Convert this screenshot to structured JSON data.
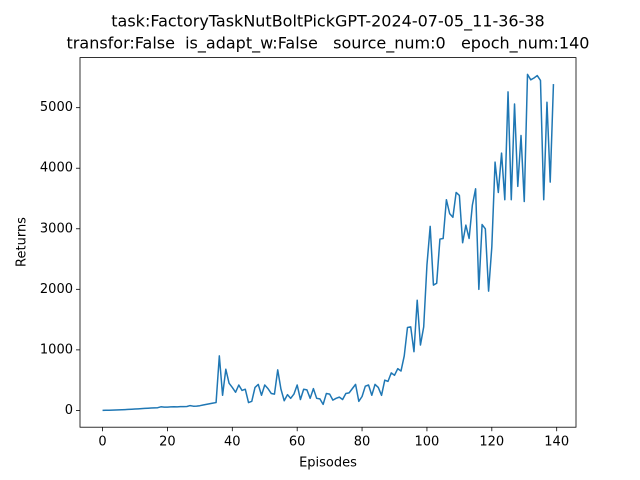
{
  "chart_data": {
    "type": "line",
    "title": [
      "task:FactoryTaskNutBoltPickGPT-2024-07-05_11-36-38",
      "transfor:False  is_adapt_w:False   source_num:0   epoch_num:140"
    ],
    "xlabel": "Episodes",
    "ylabel": "Returns",
    "color": "#1f77b4",
    "x": [
      0,
      1,
      2,
      3,
      4,
      5,
      6,
      7,
      8,
      9,
      10,
      11,
      12,
      13,
      14,
      15,
      16,
      17,
      18,
      19,
      20,
      21,
      22,
      23,
      24,
      25,
      26,
      27,
      28,
      29,
      30,
      31,
      32,
      33,
      34,
      35,
      36,
      37,
      38,
      39,
      40,
      41,
      42,
      43,
      44,
      45,
      46,
      47,
      48,
      49,
      50,
      51,
      52,
      53,
      54,
      55,
      56,
      57,
      58,
      59,
      60,
      61,
      62,
      63,
      64,
      65,
      66,
      67,
      68,
      69,
      70,
      71,
      72,
      73,
      74,
      75,
      76,
      77,
      78,
      79,
      80,
      81,
      82,
      83,
      84,
      85,
      86,
      87,
      88,
      89,
      90,
      91,
      92,
      93,
      94,
      95,
      96,
      97,
      98,
      99,
      100,
      101,
      102,
      103,
      104,
      105,
      106,
      107,
      108,
      109,
      110,
      111,
      112,
      113,
      114,
      115,
      116,
      117,
      118,
      119,
      120,
      121,
      122,
      123,
      124,
      125,
      126,
      127,
      128,
      129,
      130,
      131,
      132,
      133,
      134,
      135,
      136,
      137,
      138,
      139
    ],
    "values": [
      0,
      2,
      4,
      5,
      7,
      9,
      12,
      14,
      17,
      20,
      23,
      26,
      30,
      33,
      37,
      40,
      42,
      45,
      60,
      55,
      55,
      58,
      60,
      58,
      62,
      62,
      65,
      80,
      70,
      72,
      78,
      90,
      100,
      110,
      120,
      130,
      900,
      250,
      680,
      450,
      380,
      300,
      420,
      330,
      350,
      130,
      150,
      380,
      430,
      250,
      420,
      360,
      280,
      270,
      670,
      350,
      160,
      260,
      200,
      270,
      420,
      180,
      350,
      340,
      200,
      360,
      200,
      190,
      100,
      280,
      270,
      170,
      200,
      220,
      180,
      280,
      290,
      360,
      430,
      150,
      230,
      400,
      420,
      250,
      430,
      380,
      250,
      500,
      480,
      620,
      580,
      690,
      650,
      900,
      1370,
      1380,
      970,
      1820,
      1080,
      1380,
      2400,
      3040,
      2070,
      2100,
      2830,
      2840,
      3480,
      3250,
      3190,
      3600,
      3550,
      2770,
      3060,
      2840,
      3390,
      3660,
      2000,
      3070,
      3000,
      1970,
      2700,
      4100,
      3600,
      4250,
      3480,
      5260,
      3480,
      5060,
      3700,
      4540,
      3450,
      5550,
      5460,
      5490,
      5530,
      5450,
      3480,
      5090,
      3770,
      5390
    ],
    "xlim": [
      -6.95,
      145.95
    ],
    "xticks": [
      0,
      20,
      40,
      60,
      80,
      100,
      120,
      140
    ],
    "ylim": [
      -277,
      5827
    ],
    "yticks": [
      0,
      1000,
      2000,
      3000,
      4000,
      5000
    ]
  }
}
